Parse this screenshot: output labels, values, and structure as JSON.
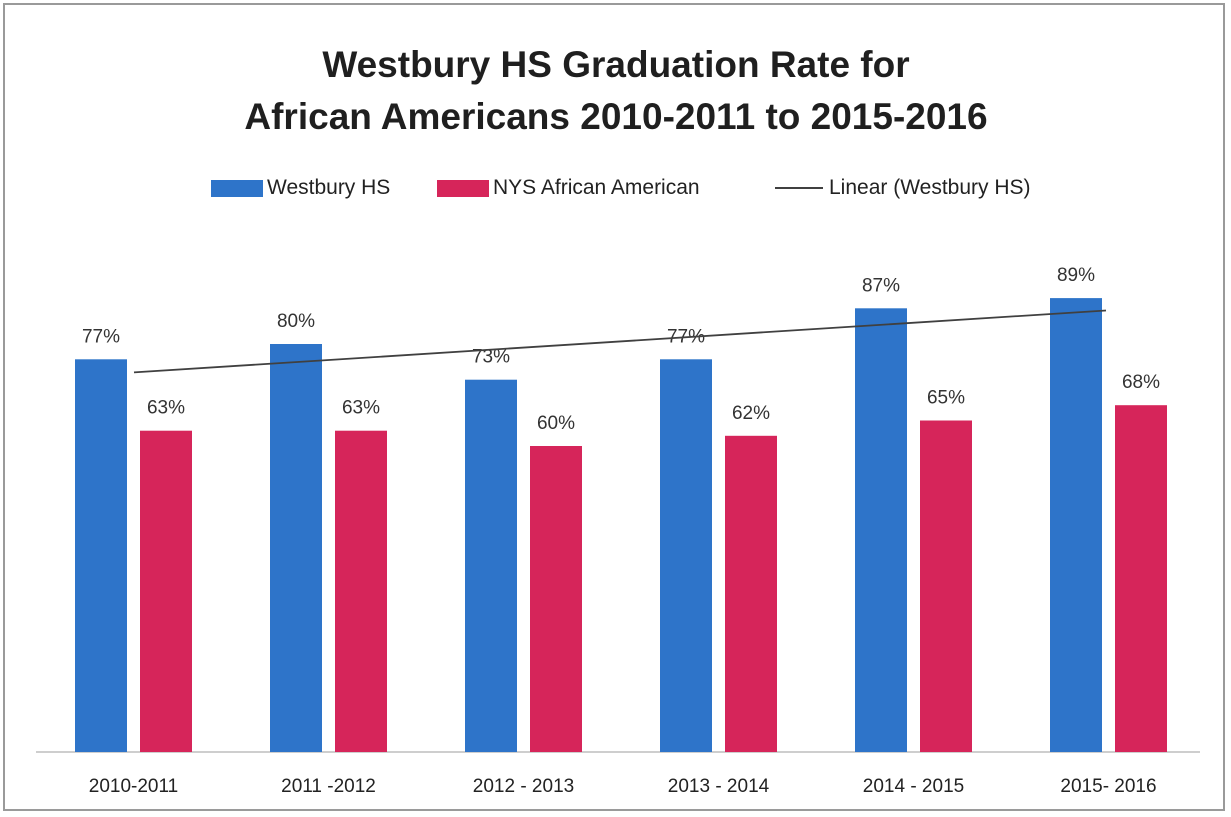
{
  "chart_data": {
    "type": "bar",
    "title_line1": "Westbury HS Graduation Rate for",
    "title_line2": "African Americans 2010-2011 to 2015-2016",
    "categories": [
      "2010-2011",
      "2011 -2012",
      "2012 - 2013",
      "2013 - 2014",
      "2014 - 2015",
      "2015- 2016"
    ],
    "series": [
      {
        "name": "Westbury HS",
        "values": [
          77,
          80,
          73,
          77,
          87,
          89
        ],
        "labels": [
          "77%",
          "80%",
          "73%",
          "77%",
          "87%",
          "89%"
        ],
        "color": "#2e74c9"
      },
      {
        "name": "NYS African American",
        "values": [
          63,
          63,
          60,
          62,
          65,
          68
        ],
        "labels": [
          "63%",
          "63%",
          "60%",
          "62%",
          "65%",
          "68%"
        ],
        "color": "#d6255a"
      }
    ],
    "trendline": {
      "name": "Linear (Westbury HS)",
      "series": "Westbury HS",
      "color": "#404040"
    },
    "ylim": [
      0,
      100
    ],
    "grid": false,
    "legend_position": "top"
  }
}
